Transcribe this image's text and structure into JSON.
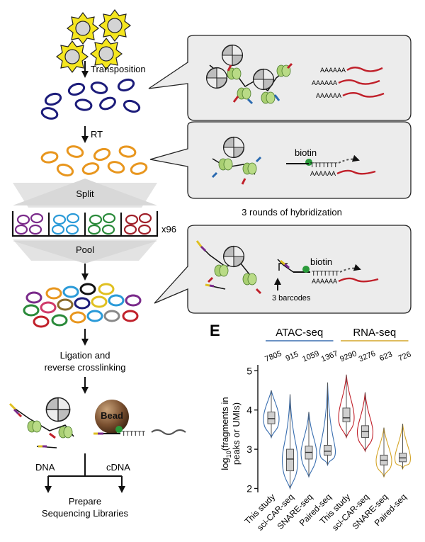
{
  "workflow": {
    "transposition": "Transposition",
    "rt": "RT",
    "split": "Split",
    "pool": "Pool",
    "plate_count": "x96",
    "ligation_line1": "Ligation and",
    "ligation_line2": "reverse crosslinking",
    "bead": "Bead",
    "dna": "DNA",
    "cdna": "cDNA",
    "prepare_line1": "Prepare",
    "prepare_line2": "Sequencing Libraries"
  },
  "callouts": {
    "polya_1": "AAAAAA",
    "polya_2": "AAAAAA",
    "polya_3": "AAAAAA",
    "biotin_1": "biotin",
    "polyt_1": "TTTTTTT",
    "polya_4": "AAAAAA",
    "hybridization": "3 rounds of hybridization",
    "biotin_2": "biotin",
    "polyt_2": "TTTTTTT",
    "polya_5": "AAAAAA",
    "barcodes": "3 barcodes",
    "bead_polyt": "TTTTTT"
  },
  "colors": {
    "nucleus": "#f5e61e",
    "nucleus_inner": "#cfcfcf",
    "nuclei_blue": "#1c1c7a",
    "nuclei_orange": "#e8961e",
    "rna": "#c0202a",
    "callout_fill": "#ececec",
    "atac_group": "#3a6fb0",
    "rna_group": "#d4a52a"
  },
  "chart_data": {
    "type": "violin",
    "panel_label": "E",
    "ylabel_prefix": "log",
    "ylabel_sub": "10",
    "ylabel_rest": "(fragments in",
    "ylabel_line2": "peaks or UMIs)",
    "ylim": [
      1.9,
      5.15
    ],
    "yticks": [
      "2",
      "3",
      "4",
      "5"
    ],
    "groups": [
      {
        "name": "ATAC-seq",
        "color": "#3a6fb0",
        "span": [
          0,
          3
        ]
      },
      {
        "name": "RNA-seq",
        "color": "#d4a52a",
        "span": [
          4,
          7
        ]
      }
    ],
    "categories": [
      "This study",
      "sci-CAR-seq",
      "SNARE-seq",
      "Paired-seq",
      "This study",
      "sci-CAR-seq",
      "SNARE-seq",
      "Paired-seq"
    ],
    "counts": [
      "7805",
      "915",
      "1059",
      "1367",
      "9290",
      "3276",
      "623",
      "726"
    ],
    "series": [
      {
        "color": "#3a6fb0",
        "min": 3.3,
        "q1": 3.65,
        "median": 3.78,
        "q3": 3.95,
        "max": 4.5
      },
      {
        "color": "#3a6fb0",
        "min": 2.0,
        "q1": 2.45,
        "median": 2.75,
        "q3": 3.0,
        "max": 4.4
      },
      {
        "color": "#3a6fb0",
        "min": 2.3,
        "q1": 2.75,
        "median": 2.92,
        "q3": 3.08,
        "max": 3.95
      },
      {
        "color": "#3a6fb0",
        "min": 2.6,
        "q1": 2.85,
        "median": 2.95,
        "q3": 3.1,
        "max": 4.7
      },
      {
        "color": "#c0202a",
        "min": 3.3,
        "q1": 3.7,
        "median": 3.8,
        "q3": 4.05,
        "max": 4.9
      },
      {
        "color": "#c0202a",
        "min": 2.95,
        "q1": 3.3,
        "median": 3.45,
        "q3": 3.6,
        "max": 4.45
      },
      {
        "color": "#d4a52a",
        "min": 2.3,
        "q1": 2.6,
        "median": 2.72,
        "q3": 2.85,
        "max": 3.55
      },
      {
        "color": "#d4a52a",
        "min": 2.5,
        "q1": 2.68,
        "median": 2.78,
        "q3": 2.9,
        "max": 3.65
      }
    ]
  }
}
